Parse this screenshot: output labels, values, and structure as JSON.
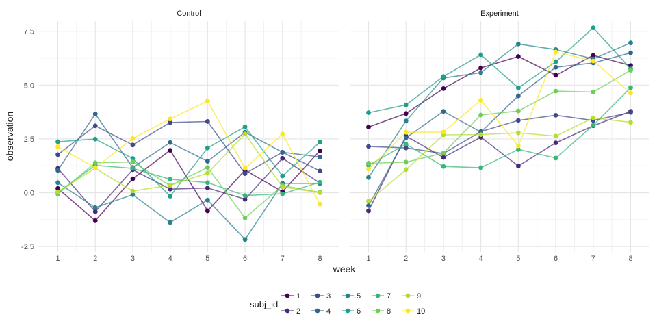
{
  "chart_data": {
    "type": "line",
    "facets": [
      "Control",
      "Experiment"
    ],
    "x": [
      1,
      2,
      3,
      4,
      5,
      6,
      7,
      8
    ],
    "xlabel": "week",
    "ylabel": "observation",
    "ylim": [
      -2.75,
      8.0
    ],
    "y_ticks": [
      -2.5,
      0.0,
      2.5,
      5.0,
      7.5
    ],
    "y_tick_labels": [
      "-2.5",
      "0.0",
      "2.5",
      "5.0",
      "7.5"
    ],
    "grid": true,
    "legend": {
      "title": "subj_id",
      "placement": "bottom",
      "columns": [
        [
          "1",
          "2"
        ],
        [
          "3",
          "4"
        ],
        [
          "5",
          "6"
        ],
        [
          "7",
          "8"
        ],
        [
          "9",
          "10"
        ]
      ]
    },
    "series": [
      {
        "name": "1",
        "color": "#440154",
        "Control": [
          0.2,
          -1.3,
          0.65,
          1.97,
          -0.84,
          1.05,
          0.05,
          1.95
        ],
        "Experiment": [
          3.05,
          3.68,
          4.84,
          5.8,
          6.33,
          5.46,
          6.38,
          5.91
        ]
      },
      {
        "name": "2",
        "color": "#482878",
        "Control": [
          1.13,
          -0.88,
          1.07,
          0.17,
          0.22,
          -0.3,
          1.6,
          0.45
        ],
        "Experiment": [
          -0.84,
          2.63,
          1.64,
          2.58,
          1.24,
          2.32,
          3.11,
          3.78
        ]
      },
      {
        "name": "3",
        "color": "#3E4A89",
        "Control": [
          1.77,
          3.11,
          2.22,
          3.26,
          3.31,
          0.89,
          1.88,
          1.01
        ],
        "Experiment": [
          2.15,
          2.08,
          1.82,
          2.84,
          3.36,
          3.6,
          3.36,
          3.73
        ]
      },
      {
        "name": "4",
        "color": "#31688E",
        "Control": [
          1.04,
          3.66,
          1.17,
          2.33,
          1.46,
          2.81,
          1.88,
          1.66
        ],
        "Experiment": [
          -0.6,
          2.55,
          3.78,
          2.82,
          4.5,
          5.83,
          6.03,
          6.5
        ]
      },
      {
        "name": "5",
        "color": "#26828E",
        "Control": [
          0.47,
          -0.69,
          -0.09,
          -1.38,
          -0.34,
          -2.17,
          0.44,
          0.43
        ],
        "Experiment": [
          0.71,
          3.33,
          5.33,
          5.58,
          6.91,
          6.65,
          6.22,
          6.96
        ]
      },
      {
        "name": "6",
        "color": "#1F9E89",
        "Control": [
          2.37,
          2.49,
          1.59,
          -0.16,
          2.08,
          3.06,
          0.78,
          2.35
        ],
        "Experiment": [
          3.72,
          4.08,
          5.4,
          6.41,
          4.87,
          6.09,
          7.66,
          5.76
        ]
      },
      {
        "name": "7",
        "color": "#35B779",
        "Control": [
          0.02,
          1.27,
          1.13,
          0.63,
          0.47,
          -0.13,
          -0.05,
          0.49
        ],
        "Experiment": [
          1.27,
          2.26,
          1.22,
          1.16,
          2.01,
          1.61,
          3.13,
          4.88
        ]
      },
      {
        "name": "8",
        "color": "#6DCD59",
        "Control": [
          -0.06,
          1.39,
          1.43,
          0.33,
          1.17,
          -1.17,
          0.33,
          0.02
        ],
        "Experiment": [
          1.37,
          1.42,
          1.84,
          3.61,
          3.8,
          4.72,
          4.68,
          5.69
        ]
      },
      {
        "name": "9",
        "color": "#B4DE2C",
        "Control": [
          0.04,
          1.14,
          0.08,
          0.35,
          0.91,
          2.73,
          0.27,
          0.0
        ],
        "Experiment": [
          -0.39,
          1.07,
          2.69,
          2.7,
          2.78,
          2.63,
          3.48,
          3.27
        ]
      },
      {
        "name": "10",
        "color": "#FDE725",
        "Control": [
          2.14,
          1.16,
          2.52,
          3.43,
          4.26,
          1.13,
          2.73,
          -0.53
        ],
        "Experiment": [
          1.09,
          2.81,
          2.82,
          4.3,
          2.18,
          6.54,
          6.12,
          4.63
        ]
      }
    ]
  }
}
